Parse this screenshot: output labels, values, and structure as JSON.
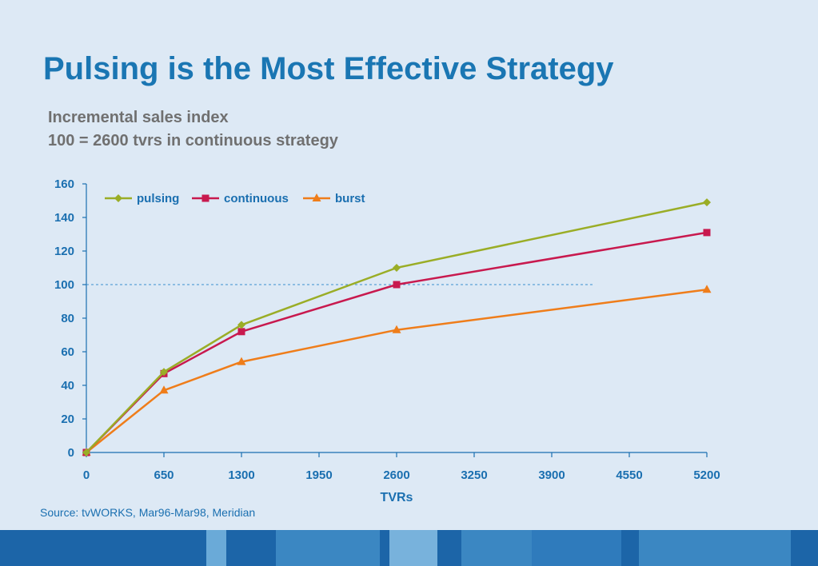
{
  "title": "Pulsing is the Most Effective Strategy",
  "subtitle_lines": [
    "Incremental sales index",
    "100 = 2600 tvrs in continuous strategy"
  ],
  "source": "Source: tvWORKS, Mar96-Mar98, Meridian",
  "colors": {
    "title": "#1a76b3",
    "axis": "#1a6fb0",
    "reference_line": "#3a8fd0",
    "pulsing": "#9aad26",
    "continuous": "#c8194e",
    "burst": "#ef7d1a",
    "footer": [
      "#1c65a8",
      "#6aaad8",
      "#1c65a8",
      "#3b87c2",
      "#1c65a8",
      "#78b2dc",
      "#1c65a8",
      "#3b87c2",
      "#2f7bbc",
      "#1c65a8",
      "#3b87c2",
      "#1c65a8"
    ]
  },
  "chart_data": {
    "type": "line",
    "title": "",
    "xlabel": "TVRs",
    "ylabel": "",
    "x": [
      0,
      650,
      1300,
      2600,
      5200
    ],
    "x_ticks": [
      0,
      650,
      1300,
      1950,
      2600,
      3250,
      3900,
      4550,
      5200
    ],
    "y_ticks": [
      0,
      20,
      40,
      60,
      80,
      100,
      120,
      140,
      160
    ],
    "xlim": [
      0,
      5200
    ],
    "ylim": [
      0,
      160
    ],
    "grid": false,
    "legend_position": "top-left",
    "reference_line": {
      "y": 100,
      "x_range": [
        0,
        4250
      ],
      "style": "dashed"
    },
    "series": [
      {
        "name": "pulsing",
        "marker": "diamond",
        "values": [
          0,
          48,
          76,
          110,
          149
        ]
      },
      {
        "name": "continuous",
        "marker": "square",
        "values": [
          0,
          47,
          72,
          100,
          131
        ]
      },
      {
        "name": "burst",
        "marker": "triangle",
        "values": [
          0,
          37,
          54,
          73,
          97
        ]
      }
    ]
  }
}
